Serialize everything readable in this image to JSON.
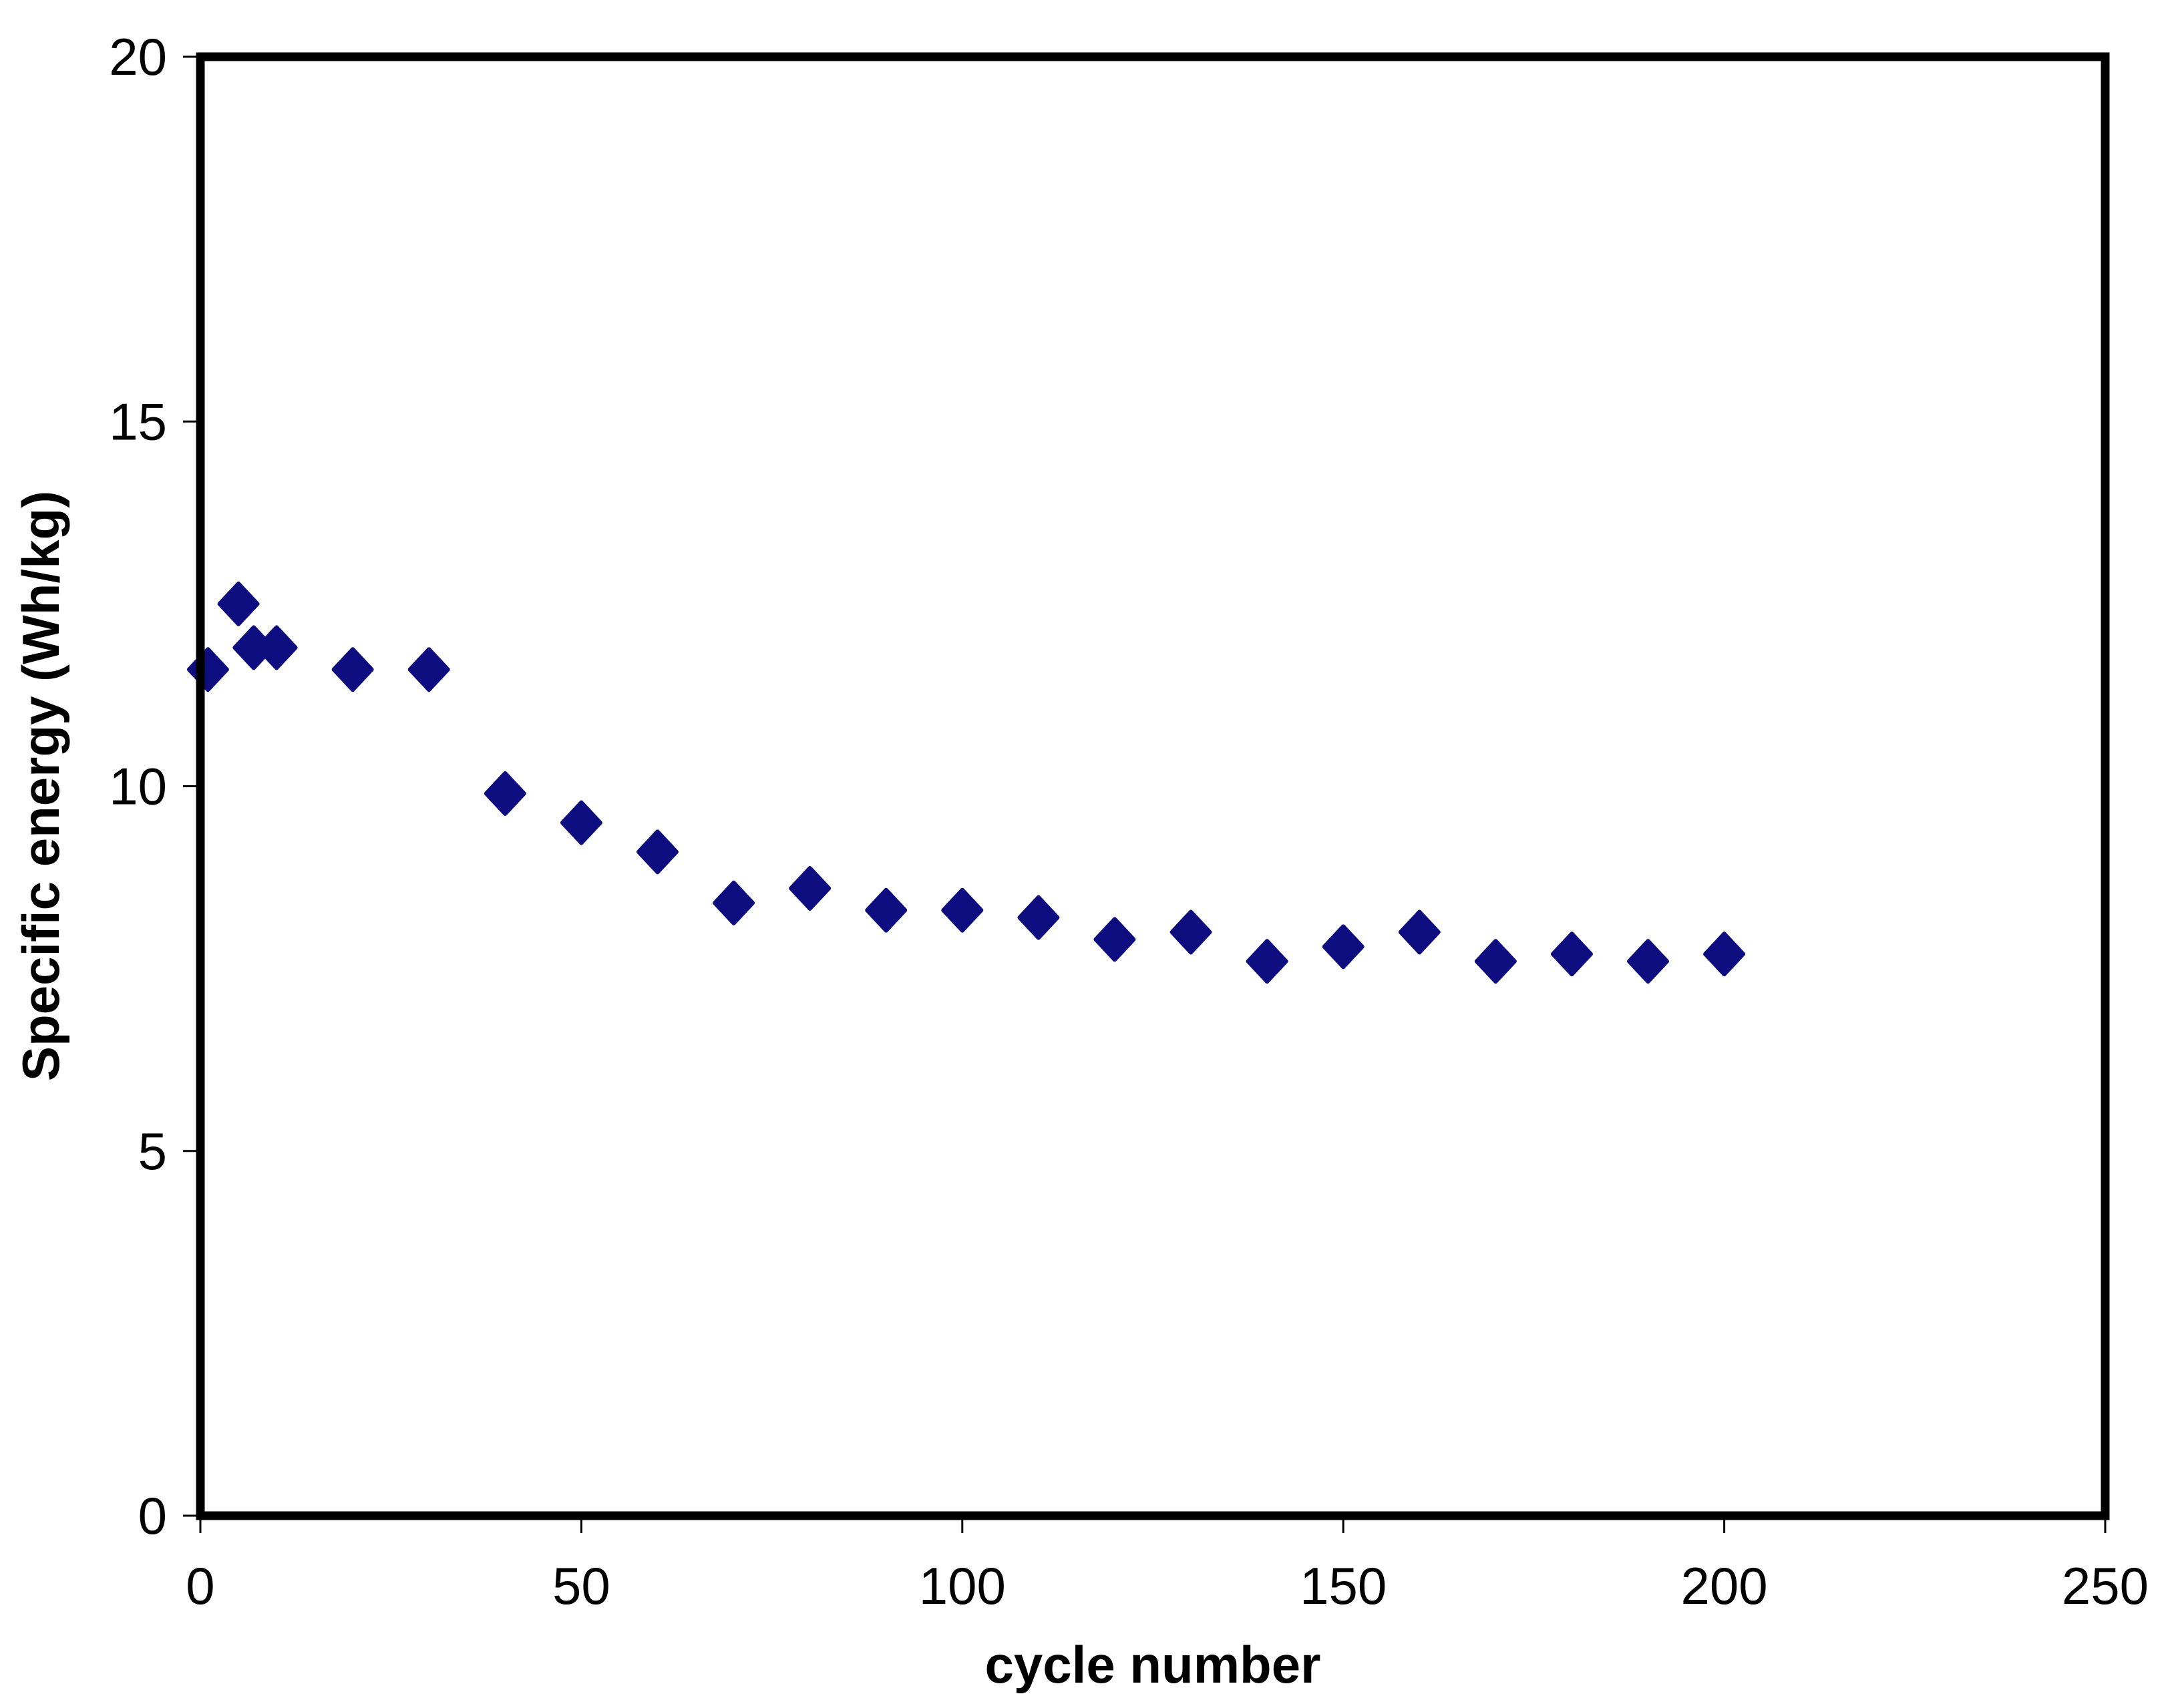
{
  "chart_data": {
    "type": "scatter",
    "title": "",
    "xlabel": "cycle number",
    "ylabel": "Specific energy (Wh/kg)",
    "x": [
      1,
      5,
      7,
      10,
      20,
      30,
      40,
      50,
      60,
      70,
      80,
      90,
      100,
      110,
      120,
      130,
      140,
      150,
      160,
      170,
      180,
      190,
      200
    ],
    "y": [
      11.6,
      12.5,
      11.9,
      11.9,
      11.6,
      11.6,
      9.9,
      9.5,
      9.1,
      8.4,
      8.6,
      8.3,
      8.3,
      8.2,
      7.9,
      8.0,
      7.6,
      7.8,
      8.0,
      7.6,
      7.7,
      7.6,
      7.7
    ],
    "xlim": [
      0,
      250
    ],
    "ylim": [
      0,
      20
    ],
    "xticks": [
      0,
      50,
      100,
      150,
      200,
      250
    ],
    "yticks": [
      0,
      5,
      10,
      15,
      20
    ],
    "marker": "diamond",
    "marker_color": "#0D0D80",
    "axis_color": "#000000",
    "background_color": "#FFFFFF",
    "grid": false,
    "legend": "none"
  }
}
